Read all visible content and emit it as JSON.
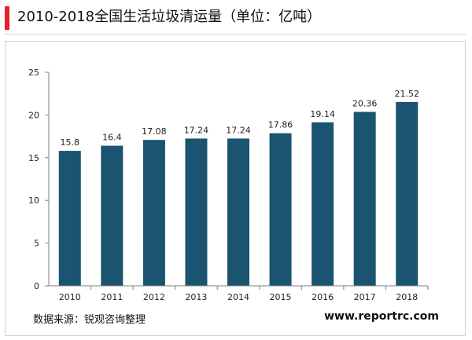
{
  "page": {
    "source_label": "数据来源：锐观咨询整理",
    "website": "www.reportrc.com",
    "accent_color": "#e8202a"
  },
  "chart_data": {
    "type": "bar",
    "title": "2010-2018全国生活垃圾清运量（单位：亿吨）",
    "categories": [
      "2010",
      "2011",
      "2012",
      "2013",
      "2014",
      "2015",
      "2016",
      "2017",
      "2018"
    ],
    "values": [
      15.8,
      16.4,
      17.08,
      17.24,
      17.24,
      17.86,
      19.14,
      20.36,
      21.52
    ],
    "value_labels": [
      "15.8",
      "16.4",
      "17.08",
      "17.24",
      "17.24",
      "17.86",
      "19.14",
      "20.36",
      "21.52"
    ],
    "ylim": [
      0,
      25
    ],
    "yticks": [
      0,
      5,
      10,
      15,
      20,
      25
    ],
    "bar_color": "#1a5470",
    "grid": false,
    "legend": "none"
  }
}
